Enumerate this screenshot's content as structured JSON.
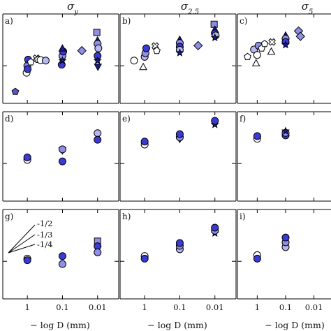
{
  "chart_data": {
    "type": "scatter",
    "x_scale": "log",
    "y_scale": "log",
    "grid": false,
    "column_titles": [
      "σ_y",
      "σ_2.5",
      "σ_5"
    ],
    "column_titles_display": [
      {
        "base": "σ",
        "sub": "y"
      },
      {
        "base": "σ",
        "sub": "2.5"
      },
      {
        "base": "σ",
        "sub": "5"
      }
    ],
    "xlabel": "− log D (mm)",
    "x_ticks": [
      {
        "value": 1,
        "label": "1"
      },
      {
        "value": 0.1,
        "label": "0.1"
      },
      {
        "value": 0.01,
        "label": "0.01"
      }
    ],
    "slope_labels": [
      "-1/2",
      "-1/3",
      "-1/4"
    ],
    "panels": [
      {
        "id": "a",
        "label": "a)",
        "points": [
          {
            "x": 2.2,
            "y": 0.62,
            "marker": "pentagon",
            "color": "#5555cc"
          },
          {
            "x": 1.05,
            "y": 0.88,
            "marker": "circle",
            "color": "#ffffff"
          },
          {
            "x": 1.0,
            "y": 1.0,
            "marker": "circle",
            "color": "#8f8fe6"
          },
          {
            "x": 0.98,
            "y": 0.94,
            "marker": "circle",
            "color": "#3a3ad6"
          },
          {
            "x": 0.95,
            "y": 1.12,
            "marker": "circle",
            "color": "#3a3ad6"
          },
          {
            "x": 0.8,
            "y": 1.07,
            "marker": "pentagon",
            "color": "#ffffff"
          },
          {
            "x": 0.55,
            "y": 1.15,
            "marker": "cross",
            "color": "#ffffff"
          },
          {
            "x": 0.5,
            "y": 1.12,
            "marker": "pentagon",
            "color": "#ffffff"
          },
          {
            "x": 0.42,
            "y": 1.11,
            "marker": "circle",
            "color": "#ffffff"
          },
          {
            "x": 0.3,
            "y": 1.1,
            "marker": "circle",
            "color": "#b8b8f0"
          },
          {
            "x": 0.105,
            "y": 1.02,
            "marker": "circle",
            "color": "#3a3ad6"
          },
          {
            "x": 0.1,
            "y": 1.2,
            "marker": "circle",
            "color": "#8f8fe6"
          },
          {
            "x": 0.095,
            "y": 1.3,
            "marker": "circle",
            "color": "#3a3ad6"
          },
          {
            "x": 0.1,
            "y": 1.38,
            "marker": "triangle-up",
            "color": "#1a1a8a"
          },
          {
            "x": 0.1,
            "y": 1.1,
            "marker": "star",
            "color": "#1a1a8a"
          },
          {
            "x": 0.028,
            "y": 1.32,
            "marker": "diamond",
            "color": "#8f8fe6"
          },
          {
            "x": 0.0105,
            "y": 1.85,
            "marker": "square",
            "color": "#8f8fe6"
          },
          {
            "x": 0.01,
            "y": 1.6,
            "marker": "triangle-up",
            "color": "#1a1a8a"
          },
          {
            "x": 0.01,
            "y": 1.5,
            "marker": "circle",
            "color": "#8f8fe6"
          },
          {
            "x": 0.0095,
            "y": 1.38,
            "marker": "circle",
            "color": "#b8b8f0"
          },
          {
            "x": 0.01,
            "y": 1.2,
            "marker": "circle",
            "color": "#3a3ad6"
          },
          {
            "x": 0.01,
            "y": 1.1,
            "marker": "star",
            "color": "#1a1a8a"
          },
          {
            "x": 0.0098,
            "y": 0.98,
            "marker": "triangle-down",
            "color": "#1a1a8a"
          }
        ]
      },
      {
        "id": "b",
        "label": "b)",
        "points": [
          {
            "x": 2.0,
            "y": 1.1,
            "marker": "circle",
            "color": "#ffffff"
          },
          {
            "x": 1.1,
            "y": 0.98,
            "marker": "triangle-up",
            "color": "#ffffff"
          },
          {
            "x": 1.0,
            "y": 1.18,
            "marker": "circle",
            "color": "#b8b8f0"
          },
          {
            "x": 0.95,
            "y": 1.26,
            "marker": "circle",
            "color": "#8f8fe6"
          },
          {
            "x": 0.9,
            "y": 1.38,
            "marker": "circle",
            "color": "#3a3ad6"
          },
          {
            "x": 0.5,
            "y": 1.44,
            "marker": "cross",
            "color": "#ffffff"
          },
          {
            "x": 0.45,
            "y": 1.32,
            "marker": "pentagon",
            "color": "#ffffff"
          },
          {
            "x": 0.1,
            "y": 1.62,
            "marker": "triangle-up",
            "color": "#1a1a8a"
          },
          {
            "x": 0.1,
            "y": 1.52,
            "marker": "circle",
            "color": "#8f8fe6"
          },
          {
            "x": 0.1,
            "y": 1.42,
            "marker": "circle",
            "color": "#3a3ad6"
          },
          {
            "x": 0.1,
            "y": 1.34,
            "marker": "circle",
            "color": "#b8b8f0"
          },
          {
            "x": 0.1,
            "y": 1.27,
            "marker": "star",
            "color": "#1a1a8a"
          },
          {
            "x": 0.03,
            "y": 1.45,
            "marker": "diamond",
            "color": "#8f8fe6"
          },
          {
            "x": 0.0105,
            "y": 2.15,
            "marker": "square",
            "color": "#8f8fe6"
          },
          {
            "x": 0.01,
            "y": 1.95,
            "marker": "triangle-up",
            "color": "#1a1a8a"
          },
          {
            "x": 0.01,
            "y": 1.82,
            "marker": "circle",
            "color": "#3a3ad6"
          },
          {
            "x": 0.0095,
            "y": 1.75,
            "marker": "circle",
            "color": "#b8b8f0"
          },
          {
            "x": 0.01,
            "y": 1.68,
            "marker": "star",
            "color": "#1a1a8a"
          }
        ]
      },
      {
        "id": "c",
        "label": "c)",
        "points": [
          {
            "x": 2.2,
            "y": 1.18,
            "marker": "pentagon",
            "color": "#ffffff"
          },
          {
            "x": 1.3,
            "y": 1.35,
            "marker": "circle",
            "color": "#b8b8f0"
          },
          {
            "x": 1.1,
            "y": 1.05,
            "marker": "triangle-up",
            "color": "#ffffff"
          },
          {
            "x": 1.0,
            "y": 1.22,
            "marker": "circle",
            "color": "#ffffff"
          },
          {
            "x": 0.9,
            "y": 1.45,
            "marker": "circle",
            "color": "#8f8fe6"
          },
          {
            "x": 0.7,
            "y": 1.38,
            "marker": "pentagon",
            "color": "#ffffff"
          },
          {
            "x": 0.55,
            "y": 1.5,
            "marker": "pentagon",
            "color": "#ffffff"
          },
          {
            "x": 0.3,
            "y": 1.55,
            "marker": "cross",
            "color": "#ffffff"
          },
          {
            "x": 0.32,
            "y": 1.3,
            "marker": "triangle-up",
            "color": "#ffffff"
          },
          {
            "x": 0.1,
            "y": 1.75,
            "marker": "triangle-up",
            "color": "#1a1a8a"
          },
          {
            "x": 0.1,
            "y": 1.65,
            "marker": "circle",
            "color": "#8f8fe6"
          },
          {
            "x": 0.1,
            "y": 1.55,
            "marker": "circle",
            "color": "#3a3ad6"
          },
          {
            "x": 0.1,
            "y": 1.47,
            "marker": "star",
            "color": "#1a1a8a"
          },
          {
            "x": 0.035,
            "y": 1.9,
            "marker": "diamond",
            "color": "#8f8fe6"
          },
          {
            "x": 0.03,
            "y": 1.72,
            "marker": "diamond",
            "color": "#8f8fe6"
          }
        ]
      },
      {
        "id": "d",
        "label": "d)",
        "points": [
          {
            "x": 1.0,
            "y": 1.07,
            "marker": "circle",
            "color": "#ffffff"
          },
          {
            "x": 1.0,
            "y": 1.12,
            "marker": "circle",
            "color": "#3a3ad6"
          },
          {
            "x": 0.1,
            "y": 1.27,
            "marker": "triangle-down",
            "color": "#ffffff"
          },
          {
            "x": 0.1,
            "y": 1.3,
            "marker": "circle",
            "color": "#8f8fe6"
          },
          {
            "x": 0.1,
            "y": 1.04,
            "marker": "circle",
            "color": "#3a3ad6"
          },
          {
            "x": 0.01,
            "y": 1.75,
            "marker": "circle",
            "color": "#b8b8f0"
          },
          {
            "x": 0.01,
            "y": 1.55,
            "marker": "circle",
            "color": "#3a3ad6"
          }
        ]
      },
      {
        "id": "e",
        "label": "e)",
        "points": [
          {
            "x": 1.0,
            "y": 1.42,
            "marker": "circle",
            "color": "#ffffff"
          },
          {
            "x": 1.0,
            "y": 1.5,
            "marker": "circle",
            "color": "#3a3ad6"
          },
          {
            "x": 0.1,
            "y": 1.57,
            "marker": "triangle-down",
            "color": "#1a1a8a"
          },
          {
            "x": 0.1,
            "y": 1.62,
            "marker": "circle",
            "color": "#8f8fe6"
          },
          {
            "x": 0.1,
            "y": 1.72,
            "marker": "circle",
            "color": "#3a3ad6"
          },
          {
            "x": 0.01,
            "y": 2.05,
            "marker": "star",
            "color": "#1a1a8a"
          },
          {
            "x": 0.01,
            "y": 2.2,
            "marker": "circle",
            "color": "#3a3ad6"
          }
        ]
      },
      {
        "id": "f",
        "label": "f)",
        "points": [
          {
            "x": 1.0,
            "y": 1.58,
            "marker": "circle",
            "color": "#ffffff"
          },
          {
            "x": 1.0,
            "y": 1.66,
            "marker": "circle",
            "color": "#3a3ad6"
          },
          {
            "x": 0.1,
            "y": 1.68,
            "marker": "circle",
            "color": "#3a3ad6"
          },
          {
            "x": 0.1,
            "y": 1.76,
            "marker": "circle",
            "color": "#8f8fe6"
          },
          {
            "x": 0.1,
            "y": 1.82,
            "marker": "star",
            "color": "#1a1a8a"
          }
        ]
      },
      {
        "id": "g",
        "label": "g)",
        "points": [
          {
            "x": 1.0,
            "y": 1.05,
            "marker": "circle",
            "color": "#ffffff"
          },
          {
            "x": 1.0,
            "y": 1.02,
            "marker": "circle",
            "color": "#3a3ad6"
          },
          {
            "x": 0.1,
            "y": 1.1,
            "marker": "circle",
            "color": "#3a3ad6"
          },
          {
            "x": 0.1,
            "y": 0.95,
            "marker": "circle",
            "color": "#8f8fe6"
          },
          {
            "x": 0.01,
            "y": 1.45,
            "marker": "square",
            "color": "#8f8fe6"
          },
          {
            "x": 0.01,
            "y": 1.32,
            "marker": "circle",
            "color": "#3a3ad6"
          },
          {
            "x": 0.01,
            "y": 1.18,
            "marker": "circle",
            "color": "#8f8fe6"
          }
        ]
      },
      {
        "id": "h",
        "label": "h)",
        "points": [
          {
            "x": 1.0,
            "y": 1.1,
            "marker": "circle",
            "color": "#ffffff"
          },
          {
            "x": 1.0,
            "y": 1.05,
            "marker": "circle",
            "color": "#3a3ad6"
          },
          {
            "x": 0.1,
            "y": 1.25,
            "marker": "circle",
            "color": "#b8b8f0"
          },
          {
            "x": 0.1,
            "y": 1.33,
            "marker": "circle",
            "color": "#8f8fe6"
          },
          {
            "x": 0.1,
            "y": 1.4,
            "marker": "circle",
            "color": "#3a3ad6"
          },
          {
            "x": 0.01,
            "y": 1.68,
            "marker": "star",
            "color": "#1a1a8a"
          },
          {
            "x": 0.01,
            "y": 1.76,
            "marker": "circle",
            "color": "#8f8fe6"
          },
          {
            "x": 0.01,
            "y": 1.86,
            "marker": "circle",
            "color": "#3a3ad6"
          }
        ]
      },
      {
        "id": "i",
        "label": "i)",
        "points": [
          {
            "x": 1.0,
            "y": 1.12,
            "marker": "circle",
            "color": "#ffffff"
          },
          {
            "x": 1.0,
            "y": 1.05,
            "marker": "circle",
            "color": "#3a3ad6"
          },
          {
            "x": 0.1,
            "y": 1.3,
            "marker": "circle",
            "color": "#b8b8f0"
          },
          {
            "x": 0.1,
            "y": 1.42,
            "marker": "circle",
            "color": "#8f8fe6"
          },
          {
            "x": 0.1,
            "y": 1.55,
            "marker": "circle",
            "color": "#3a3ad6"
          }
        ]
      }
    ]
  }
}
